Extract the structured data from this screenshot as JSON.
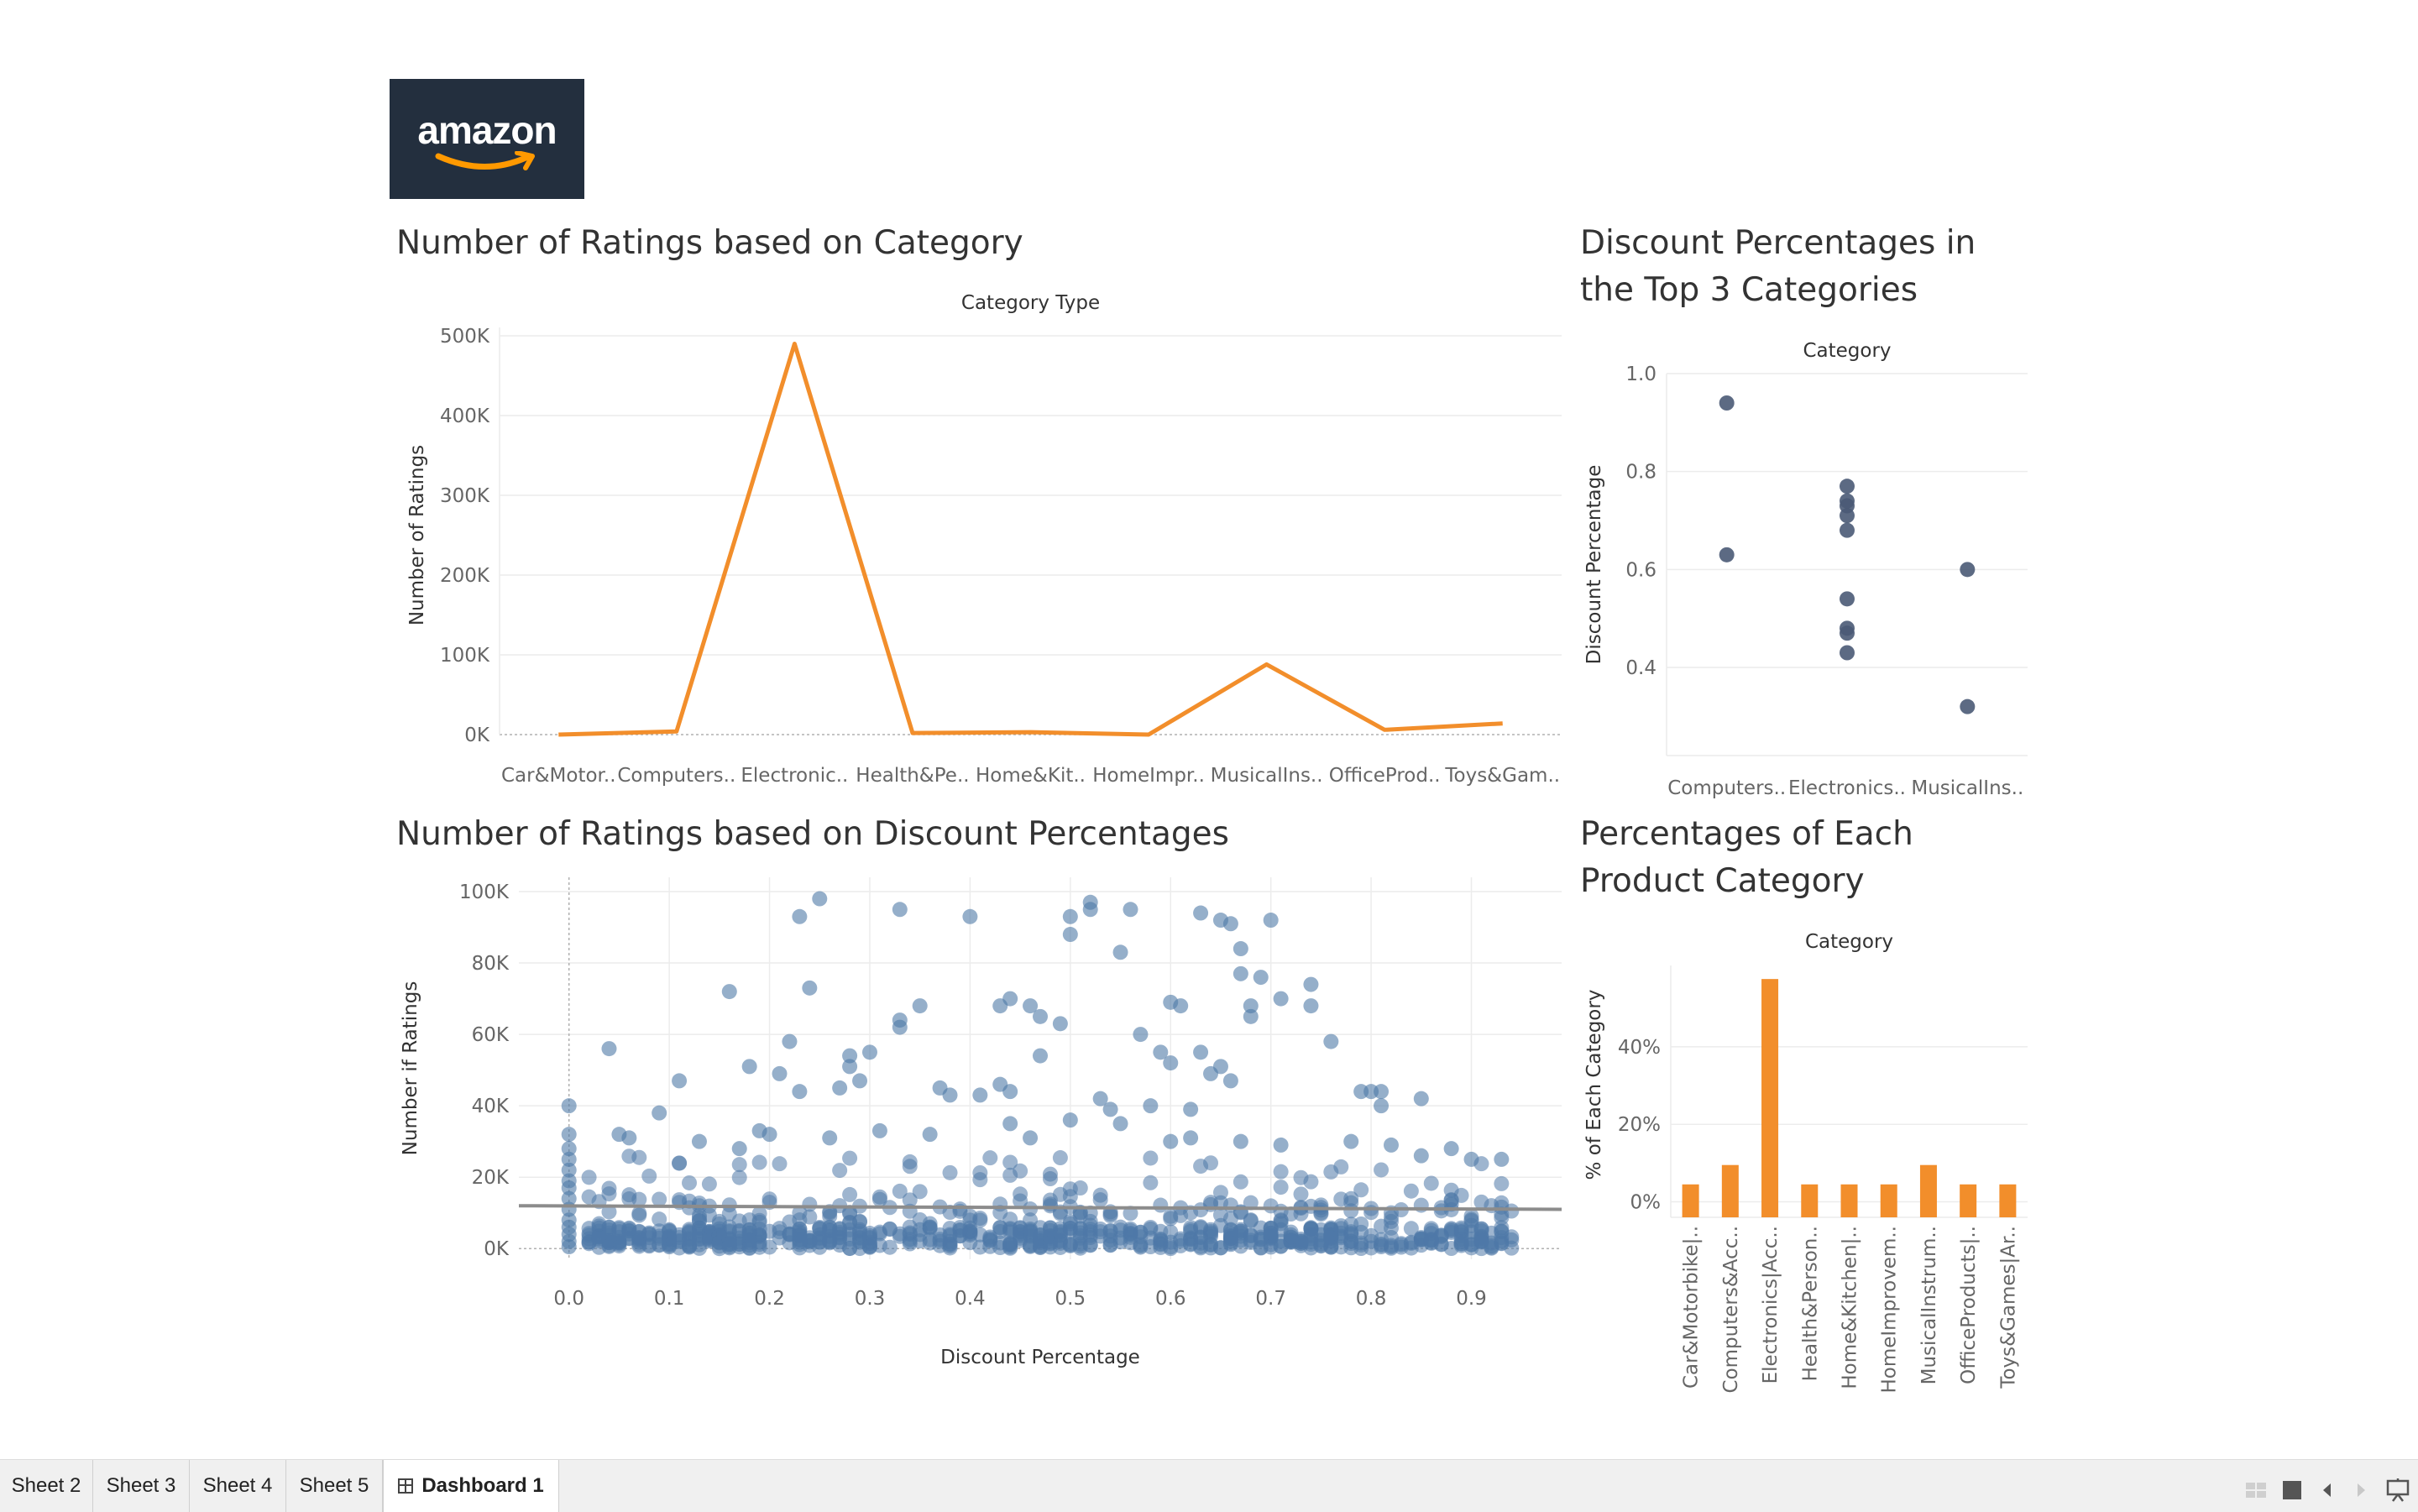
{
  "logo": {
    "text": "amazon",
    "alt_icon": "amazon-smile-arrow"
  },
  "colors": {
    "orange": "#f28e2b",
    "scatter_blue": "#4e79a7",
    "dot_dark": "#4a5a75",
    "trend": "#8c8c8c",
    "grid": "#ececec",
    "tabbar": "#f0f0f0"
  },
  "line_chart": {
    "title": "Number of Ratings based on Category"
  },
  "dot_chart": {
    "title_line1": "Discount Percentages in",
    "title_line2": "the Top 3 Categories"
  },
  "scatter_chart": {
    "title": "Number of Ratings based on Discount Percentages"
  },
  "bar_chart": {
    "title_line1": "Percentages of Each",
    "title_line2": "Product Category"
  },
  "chart_data": [
    {
      "type": "line",
      "header": "Category Type",
      "ylabel": "Number of Ratings",
      "categories": [
        "Car&Motor..",
        "Computers..",
        "Electronic..",
        "Health&Pe..",
        "Home&Kit..",
        "HomeImpr..",
        "MusicalIns..",
        "OfficeProd..",
        "Toys&Gam.."
      ],
      "values": [
        0,
        4000,
        490000,
        2000,
        3000,
        0,
        88000,
        6000,
        14000
      ],
      "ylim": [
        0,
        500000
      ],
      "yticks": [
        0,
        100000,
        200000,
        300000,
        400000,
        500000
      ],
      "ytick_labels": [
        "0K",
        "100K",
        "200K",
        "300K",
        "400K",
        "500K"
      ],
      "grid": true
    },
    {
      "type": "scatter",
      "header": "Category",
      "ylabel": "Discount Percentage",
      "categories": [
        "Computers..",
        "Electronics..",
        "MusicalIns.."
      ],
      "points": [
        {
          "category": "Computers..",
          "value": 0.94
        },
        {
          "category": "Computers..",
          "value": 0.63
        },
        {
          "category": "Electronics..",
          "value": 0.77
        },
        {
          "category": "Electronics..",
          "value": 0.74
        },
        {
          "category": "Electronics..",
          "value": 0.73
        },
        {
          "category": "Electronics..",
          "value": 0.71
        },
        {
          "category": "Electronics..",
          "value": 0.68
        },
        {
          "category": "Electronics..",
          "value": 0.54
        },
        {
          "category": "Electronics..",
          "value": 0.48
        },
        {
          "category": "Electronics..",
          "value": 0.47
        },
        {
          "category": "Electronics..",
          "value": 0.43
        },
        {
          "category": "MusicalIns..",
          "value": 0.6
        },
        {
          "category": "MusicalIns..",
          "value": 0.32
        }
      ],
      "ylim": [
        0.22,
        1.0
      ],
      "yticks": [
        0.4,
        0.6,
        0.8,
        1.0
      ],
      "ytick_labels": [
        "0.4",
        "0.6",
        "0.8",
        "1.0"
      ],
      "grid": true
    },
    {
      "type": "scatter",
      "xlabel": "Discount Percentage",
      "ylabel": "Number if Ratings",
      "xlim": [
        -0.05,
        0.99
      ],
      "ylim": [
        -3000,
        104000
      ],
      "xticks": [
        0,
        0.1,
        0.2,
        0.3,
        0.4,
        0.5,
        0.6,
        0.7,
        0.8,
        0.9
      ],
      "xtick_labels": [
        "0.0",
        "0.1",
        "0.2",
        "0.3",
        "0.4",
        "0.5",
        "0.6",
        "0.7",
        "0.8",
        "0.9"
      ],
      "yticks": [
        0,
        20000,
        40000,
        60000,
        80000,
        100000
      ],
      "ytick_labels": [
        "0K",
        "20K",
        "40K",
        "60K",
        "80K",
        "100K"
      ],
      "trend_line": {
        "x": [
          -0.05,
          0.99
        ],
        "y": [
          12000,
          11000
        ]
      },
      "points_note": "approximately 1000 points, dense below 20K",
      "points": [
        [
          0.25,
          98000
        ],
        [
          0.52,
          97000
        ],
        [
          0.23,
          93000
        ],
        [
          0.33,
          95000
        ],
        [
          0.4,
          93000
        ],
        [
          0.5,
          93000
        ],
        [
          0.52,
          95000
        ],
        [
          0.56,
          95000
        ],
        [
          0.63,
          94000
        ],
        [
          0.65,
          92000
        ],
        [
          0.66,
          91000
        ],
        [
          0.7,
          92000
        ],
        [
          0.5,
          88000
        ],
        [
          0.55,
          83000
        ],
        [
          0.67,
          84000
        ],
        [
          0.67,
          77000
        ],
        [
          0.69,
          76000
        ],
        [
          0.71,
          70000
        ],
        [
          0.74,
          74000
        ],
        [
          0.74,
          68000
        ],
        [
          0.68,
          68000
        ],
        [
          0.68,
          65000
        ],
        [
          0.16,
          72000
        ],
        [
          0.24,
          73000
        ],
        [
          0.6,
          69000
        ],
        [
          0.61,
          68000
        ],
        [
          0.35,
          68000
        ],
        [
          0.43,
          68000
        ],
        [
          0.44,
          70000
        ],
        [
          0.46,
          68000
        ],
        [
          0.47,
          65000
        ],
        [
          0.49,
          63000
        ],
        [
          0.33,
          64000
        ],
        [
          0.33,
          62000
        ],
        [
          0.04,
          56000
        ],
        [
          0.22,
          58000
        ],
        [
          0.3,
          55000
        ],
        [
          0.28,
          54000
        ],
        [
          0.28,
          51000
        ],
        [
          0.18,
          51000
        ],
        [
          0.47,
          54000
        ],
        [
          0.57,
          60000
        ],
        [
          0.59,
          55000
        ],
        [
          0.63,
          55000
        ],
        [
          0.76,
          58000
        ],
        [
          0.79,
          44000
        ],
        [
          0.81,
          40000
        ],
        [
          0.81,
          44000
        ],
        [
          0.8,
          44000
        ],
        [
          0.85,
          42000
        ],
        [
          0.11,
          47000
        ],
        [
          0.27,
          45000
        ],
        [
          0.29,
          47000
        ],
        [
          0.23,
          44000
        ],
        [
          0.21,
          49000
        ],
        [
          0.64,
          49000
        ],
        [
          0.65,
          51000
        ],
        [
          0.6,
          52000
        ],
        [
          0.66,
          47000
        ],
        [
          0.58,
          40000
        ],
        [
          0.54,
          39000
        ],
        [
          0.62,
          39000
        ],
        [
          0.53,
          42000
        ],
        [
          0.37,
          45000
        ],
        [
          0.38,
          43000
        ],
        [
          0.43,
          46000
        ],
        [
          0.44,
          44000
        ],
        [
          0.41,
          43000
        ],
        [
          0.0,
          40000
        ],
        [
          0.05,
          32000
        ],
        [
          0.06,
          31000
        ],
        [
          0.09,
          38000
        ],
        [
          0.13,
          30000
        ],
        [
          0.17,
          28000
        ],
        [
          0.19,
          33000
        ],
        [
          0.2,
          32000
        ],
        [
          0.26,
          31000
        ],
        [
          0.31,
          33000
        ],
        [
          0.36,
          32000
        ],
        [
          0.44,
          35000
        ],
        [
          0.46,
          31000
        ],
        [
          0.5,
          36000
        ],
        [
          0.55,
          35000
        ],
        [
          0.6,
          30000
        ],
        [
          0.62,
          31000
        ],
        [
          0.67,
          30000
        ],
        [
          0.71,
          29000
        ],
        [
          0.78,
          30000
        ],
        [
          0.82,
          29000
        ],
        [
          0.85,
          26000
        ],
        [
          0.88,
          28000
        ],
        [
          0.9,
          25000
        ],
        [
          0.93,
          25000
        ],
        [
          0.0,
          32000
        ],
        [
          0.0,
          28000
        ],
        [
          0.0,
          25000
        ],
        [
          0.0,
          22000
        ],
        [
          0.0,
          19000
        ],
        [
          0.0,
          17000
        ],
        [
          0.0,
          14000
        ],
        [
          0.0,
          11000
        ],
        [
          0.0,
          8000
        ],
        [
          0.0,
          6000
        ],
        [
          0.0,
          4000
        ],
        [
          0.0,
          2000
        ],
        [
          0.0,
          500
        ]
      ]
    },
    {
      "type": "bar",
      "header": "Category",
      "ylabel": "% of Each Category",
      "categories": [
        "Car&Motorbike|..",
        "Computers&Acc..",
        "Electronics|Acc..",
        "Health&Person..",
        "Home&Kitchen|..",
        "HomeImprovem..",
        "MusicalInstrum..",
        "OfficeProducts|..",
        "Toys&Games|Ar.."
      ],
      "values": [
        4.5,
        9.5,
        57.5,
        4.5,
        4.5,
        4.5,
        9.5,
        4.5,
        4.5
      ],
      "ylim": [
        -4,
        61
      ],
      "yticks": [
        0,
        20,
        40
      ],
      "ytick_labels": [
        "0%",
        "20%",
        "40%"
      ],
      "grid": true
    }
  ],
  "tabs": [
    {
      "label": "Sheet 2"
    },
    {
      "label": "Sheet 3"
    },
    {
      "label": "Sheet 4"
    },
    {
      "label": "Sheet 5"
    },
    {
      "label": "Dashboard 1",
      "active": true
    }
  ],
  "footer_icons": [
    "grid-view-icon",
    "presentation-square-icon",
    "previous-icon",
    "next-icon",
    "present-mode-icon"
  ]
}
